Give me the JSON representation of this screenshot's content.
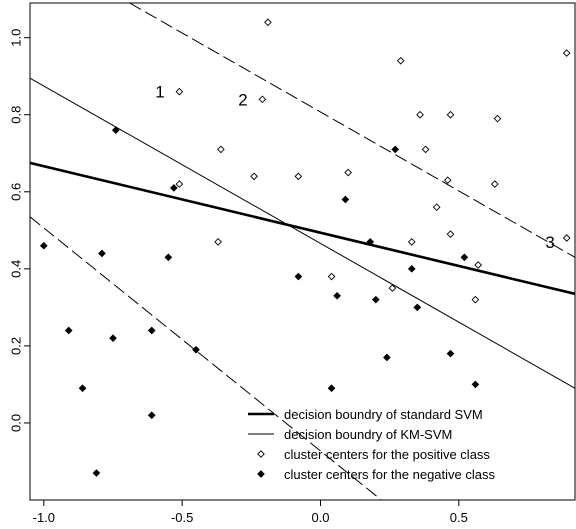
{
  "chart_data": {
    "type": "scatter",
    "title": "",
    "xlabel": "",
    "ylabel": "",
    "xlim": [
      -1.05,
      0.92
    ],
    "ylim": [
      -0.2,
      1.09
    ],
    "grid": false,
    "x_ticks": [
      -1.0,
      -0.5,
      0.0,
      0.5
    ],
    "x_tick_labels": [
      "-1.0",
      "-0.5",
      "0.0",
      "0.5"
    ],
    "y_ticks": [
      0.0,
      0.2,
      0.4,
      0.6,
      0.8,
      1.0
    ],
    "y_tick_labels": [
      "0.0",
      "0.2",
      "0.4",
      "0.6",
      "0.8",
      "1.0"
    ],
    "series": [
      {
        "name": "cluster centers for the positive class",
        "marker": "open-diamond",
        "points": [
          [
            -0.51,
            0.86
          ],
          [
            -0.19,
            1.04
          ],
          [
            -0.21,
            0.84
          ],
          [
            0.29,
            0.94
          ],
          [
            0.89,
            0.96
          ],
          [
            0.36,
            0.8
          ],
          [
            0.47,
            0.8
          ],
          [
            0.64,
            0.79
          ],
          [
            -0.36,
            0.71
          ],
          [
            0.38,
            0.71
          ],
          [
            -0.24,
            0.64
          ],
          [
            -0.08,
            0.64
          ],
          [
            0.1,
            0.65
          ],
          [
            0.46,
            0.63
          ],
          [
            0.63,
            0.62
          ],
          [
            -0.51,
            0.62
          ],
          [
            0.42,
            0.56
          ],
          [
            -0.37,
            0.47
          ],
          [
            0.33,
            0.47
          ],
          [
            0.47,
            0.49
          ],
          [
            0.89,
            0.48
          ],
          [
            0.57,
            0.41
          ],
          [
            0.04,
            0.38
          ],
          [
            0.26,
            0.35
          ],
          [
            0.56,
            0.32
          ]
        ]
      },
      {
        "name": "cluster centers for the negative class",
        "marker": "filled-diamond",
        "points": [
          [
            -0.74,
            0.76
          ],
          [
            0.27,
            0.71
          ],
          [
            -0.53,
            0.61
          ],
          [
            0.09,
            0.58
          ],
          [
            0.18,
            0.47
          ],
          [
            -1.0,
            0.46
          ],
          [
            -0.79,
            0.44
          ],
          [
            -0.55,
            0.43
          ],
          [
            0.52,
            0.43
          ],
          [
            0.33,
            0.4
          ],
          [
            -0.08,
            0.38
          ],
          [
            0.06,
            0.33
          ],
          [
            0.2,
            0.32
          ],
          [
            0.35,
            0.3
          ],
          [
            -0.91,
            0.24
          ],
          [
            -0.61,
            0.24
          ],
          [
            -0.75,
            0.22
          ],
          [
            -0.45,
            0.19
          ],
          [
            0.47,
            0.18
          ],
          [
            0.24,
            0.17
          ],
          [
            0.56,
            0.1
          ],
          [
            -0.86,
            0.09
          ],
          [
            0.04,
            0.09
          ],
          [
            -0.61,
            0.02
          ],
          [
            -0.81,
            -0.13
          ]
        ]
      }
    ],
    "lines": [
      {
        "name": "decision boundry of standard SVM",
        "style": "thick-solid",
        "from": [
          -1.05,
          0.675
        ],
        "to": [
          0.92,
          0.335
        ]
      },
      {
        "name": "decision boundry of KM-SVM",
        "style": "thin-solid",
        "from": [
          -1.05,
          0.895
        ],
        "to": [
          0.92,
          0.09
        ]
      },
      {
        "style": "dashed",
        "from": [
          -0.69,
          1.09
        ],
        "to": [
          0.92,
          0.43
        ]
      },
      {
        "style": "dashed",
        "from": [
          -1.05,
          0.535
        ],
        "to": [
          0.22,
          -0.2
        ]
      }
    ],
    "annotations": [
      {
        "text": "1",
        "x": -0.58,
        "y": 0.86
      },
      {
        "text": "2",
        "x": -0.28,
        "y": 0.84
      },
      {
        "text": "3",
        "x": 0.83,
        "y": 0.47
      }
    ],
    "legend": {
      "placement": "bottom-right",
      "entries": [
        {
          "label": "decision boundry of standard SVM",
          "symbol": "thick-line"
        },
        {
          "label": "decision boundry of KM-SVM",
          "symbol": "thin-line"
        },
        {
          "label": "cluster centers for the positive class",
          "symbol": "open-diamond"
        },
        {
          "label": "cluster centers for the negative class",
          "symbol": "filled-diamond"
        }
      ]
    }
  }
}
